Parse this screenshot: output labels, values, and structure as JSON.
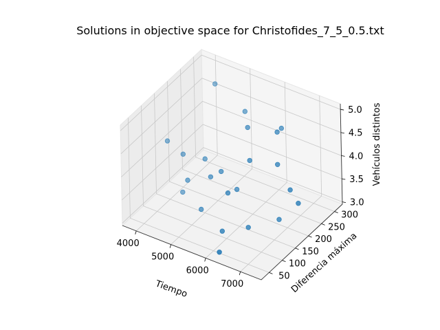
{
  "chart_data": {
    "type": "scatter",
    "projection": "3d",
    "title": "Solutions in objective space for Christofides_7_5_0.5.txt",
    "xlabel": "Tiempo",
    "ylabel": "Diferencia máxima",
    "zlabel": "Vehículos distintos",
    "xlim": [
      3600,
      7600
    ],
    "ylim": [
      20,
      330
    ],
    "zlim": [
      2.95,
      5.12
    ],
    "xticks": [
      4000,
      5000,
      6000,
      7000
    ],
    "yticks": [
      50,
      100,
      150,
      200,
      250,
      300
    ],
    "zticks": [
      3.0,
      3.5,
      4.0,
      4.5,
      5.0
    ],
    "xtick_labels": [
      "4000",
      "5000",
      "6000",
      "7000"
    ],
    "ytick_labels": [
      "50",
      "100",
      "150",
      "200",
      "250",
      "300"
    ],
    "ztick_labels": [
      "3.0",
      "3.5",
      "4.0",
      "4.5",
      "5.0"
    ],
    "marker_color": "#1f77b4",
    "points": [
      {
        "x": 4500,
        "y": 262,
        "z": 5.0
      },
      {
        "x": 5400,
        "y": 256,
        "z": 4.7
      },
      {
        "x": 5700,
        "y": 226,
        "z": 4.6
      },
      {
        "x": 6400,
        "y": 246,
        "z": 4.6
      },
      {
        "x": 6300,
        "y": 275,
        "z": 4.5
      },
      {
        "x": 6050,
        "y": 186,
        "z": 4.2
      },
      {
        "x": 6600,
        "y": 219,
        "z": 4.1
      },
      {
        "x": 7000,
        "y": 213,
        "z": 3.7
      },
      {
        "x": 7250,
        "y": 210,
        "z": 3.5
      },
      {
        "x": 3750,
        "y": 176,
        "z": 4.0
      },
      {
        "x": 4150,
        "y": 182,
        "z": 3.8
      },
      {
        "x": 4700,
        "y": 193,
        "z": 3.8
      },
      {
        "x": 5300,
        "y": 175,
        "z": 3.8
      },
      {
        "x": 5000,
        "y": 174,
        "z": 3.6
      },
      {
        "x": 4400,
        "y": 165,
        "z": 3.4
      },
      {
        "x": 5700,
        "y": 147,
        "z": 3.6
      },
      {
        "x": 5600,
        "y": 194,
        "z": 3.4
      },
      {
        "x": 6250,
        "y": 150,
        "z": 3.0
      },
      {
        "x": 6700,
        "y": 208,
        "z": 3.0
      },
      {
        "x": 4150,
        "y": 178,
        "z": 3.0
      },
      {
        "x": 6200,
        "y": 46,
        "z": 3.0
      },
      {
        "x": 4900,
        "y": 149,
        "z": 3.0
      },
      {
        "x": 5800,
        "y": 110,
        "z": 3.0
      }
    ]
  }
}
